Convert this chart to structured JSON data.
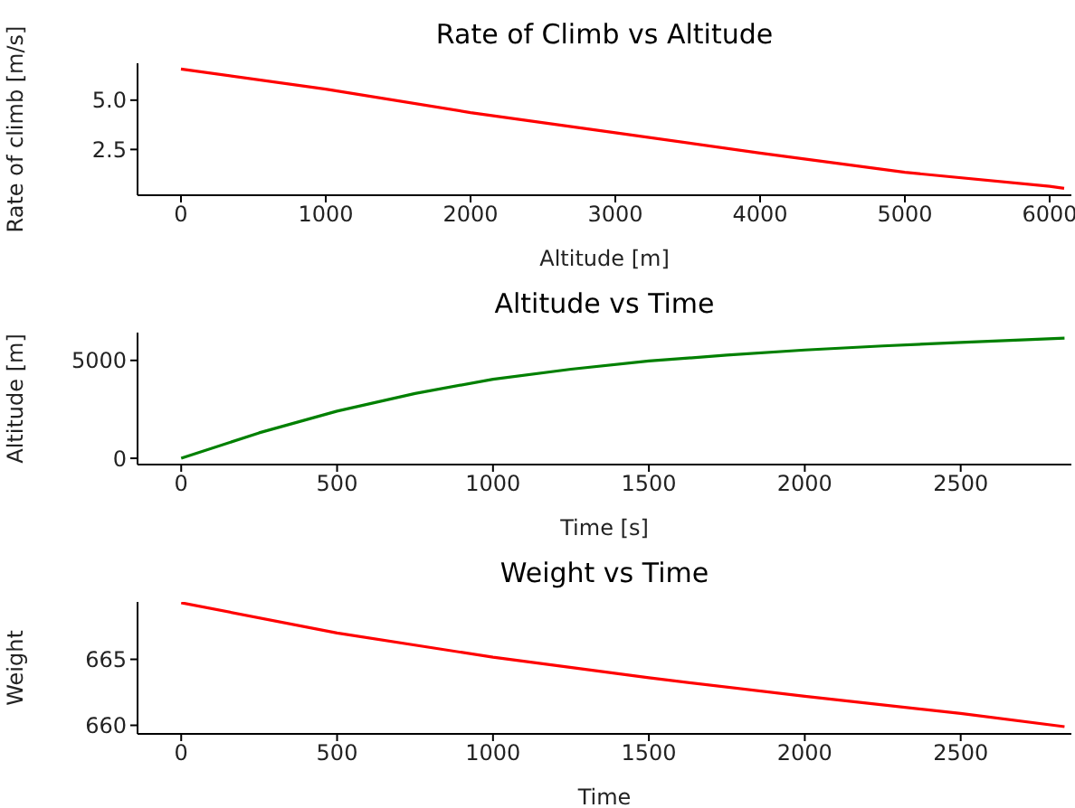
{
  "chart_data": [
    {
      "type": "line",
      "title": "Rate of Climb vs Altitude",
      "xlabel": "Altitude [m]",
      "ylabel": "Rate of climb [m/s]",
      "x": [
        0,
        1000,
        2000,
        3000,
        4000,
        5000,
        6000,
        6100
      ],
      "series": [
        {
          "color": "#ff0000",
          "values": [
            6.58,
            5.56,
            4.37,
            3.35,
            2.32,
            1.34,
            0.63,
            0.53
          ]
        }
      ],
      "xlim": [
        -300,
        6150
      ],
      "ylim": [
        0.18,
        6.87
      ],
      "xticks": [
        0,
        1000,
        2000,
        3000,
        4000,
        5000,
        6000
      ],
      "yticks": [
        {
          "value": 2.5,
          "label": "2.5"
        },
        {
          "value": 5,
          "label": "5.0"
        }
      ],
      "grid": false
    },
    {
      "type": "line",
      "title": "Altitude vs Time",
      "xlabel": "Time [s]",
      "ylabel": "Altitude [m]",
      "x": [
        0,
        250,
        500,
        750,
        1000,
        1250,
        1500,
        1750,
        2000,
        2250,
        2500,
        2833
      ],
      "series": [
        {
          "color": "#008000",
          "values": [
            0,
            1300,
            2410,
            3310,
            4040,
            4550,
            4970,
            5270,
            5530,
            5740,
            5920,
            6135
          ]
        }
      ],
      "xlim": [
        -140,
        2855
      ],
      "ylim": [
        -320,
        6420
      ],
      "xticks": [
        0,
        500,
        1000,
        1500,
        2000,
        2500
      ],
      "yticks": [
        0,
        5000
      ],
      "grid": false
    },
    {
      "type": "line",
      "title": "Weight vs Time",
      "xlabel": "Time",
      "ylabel": "Weight",
      "x": [
        0,
        500,
        1000,
        1500,
        2000,
        2500,
        2833
      ],
      "series": [
        {
          "color": "#ff0000",
          "values": [
            669.29,
            667.0,
            665.16,
            663.6,
            662.2,
            660.9,
            659.9
          ]
        }
      ],
      "xlim": [
        -140,
        2855
      ],
      "ylim": [
        659.35,
        669.35
      ],
      "xticks": [
        0,
        500,
        1000,
        1500,
        2000,
        2500
      ],
      "yticks": [
        660,
        665
      ],
      "grid": false
    }
  ]
}
